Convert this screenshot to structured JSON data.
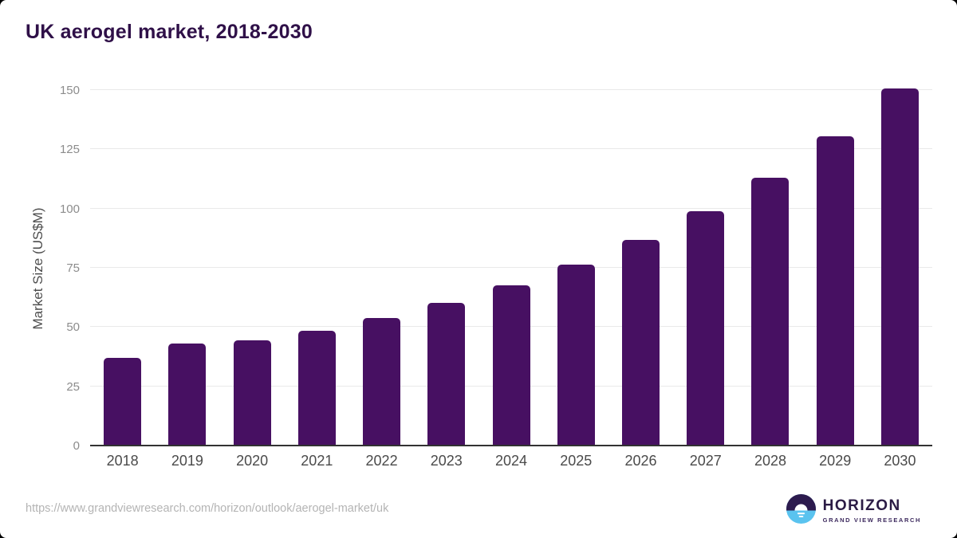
{
  "title": "UK aerogel market, 2018-2030",
  "footer": {
    "source_url": "https://www.grandviewresearch.com/horizon/outlook/aerogel-market/uk",
    "logo_name": "HORIZON",
    "logo_subtitle": "GRAND VIEW RESEARCH"
  },
  "colors": {
    "bar": "#471062",
    "title": "#2f1048",
    "gridline": "#e9e9e9",
    "axis_line": "#323232",
    "y_tick_label": "#8c8c8c",
    "x_tick_label": "#4a4a4a",
    "url_text": "#b4b4b4",
    "logo_purple": "#2d1b4e",
    "logo_blue": "#5ac3ef"
  },
  "chart_data": {
    "type": "bar",
    "title": "UK aerogel market, 2018-2030",
    "categories": [
      "2018",
      "2019",
      "2020",
      "2021",
      "2022",
      "2023",
      "2024",
      "2025",
      "2026",
      "2027",
      "2028",
      "2029",
      "2030"
    ],
    "values": [
      37.0,
      43.2,
      44.3,
      48.3,
      53.7,
      60.1,
      67.5,
      76.5,
      86.8,
      98.9,
      113.1,
      130.5,
      150.8
    ],
    "xlabel": "",
    "ylabel": "Market Size (US$M)",
    "ylim": [
      0,
      150
    ],
    "y_ticks": [
      0,
      25,
      50,
      75,
      100,
      125,
      150
    ],
    "grid": true,
    "legend": false,
    "bar_color": "#471062"
  }
}
